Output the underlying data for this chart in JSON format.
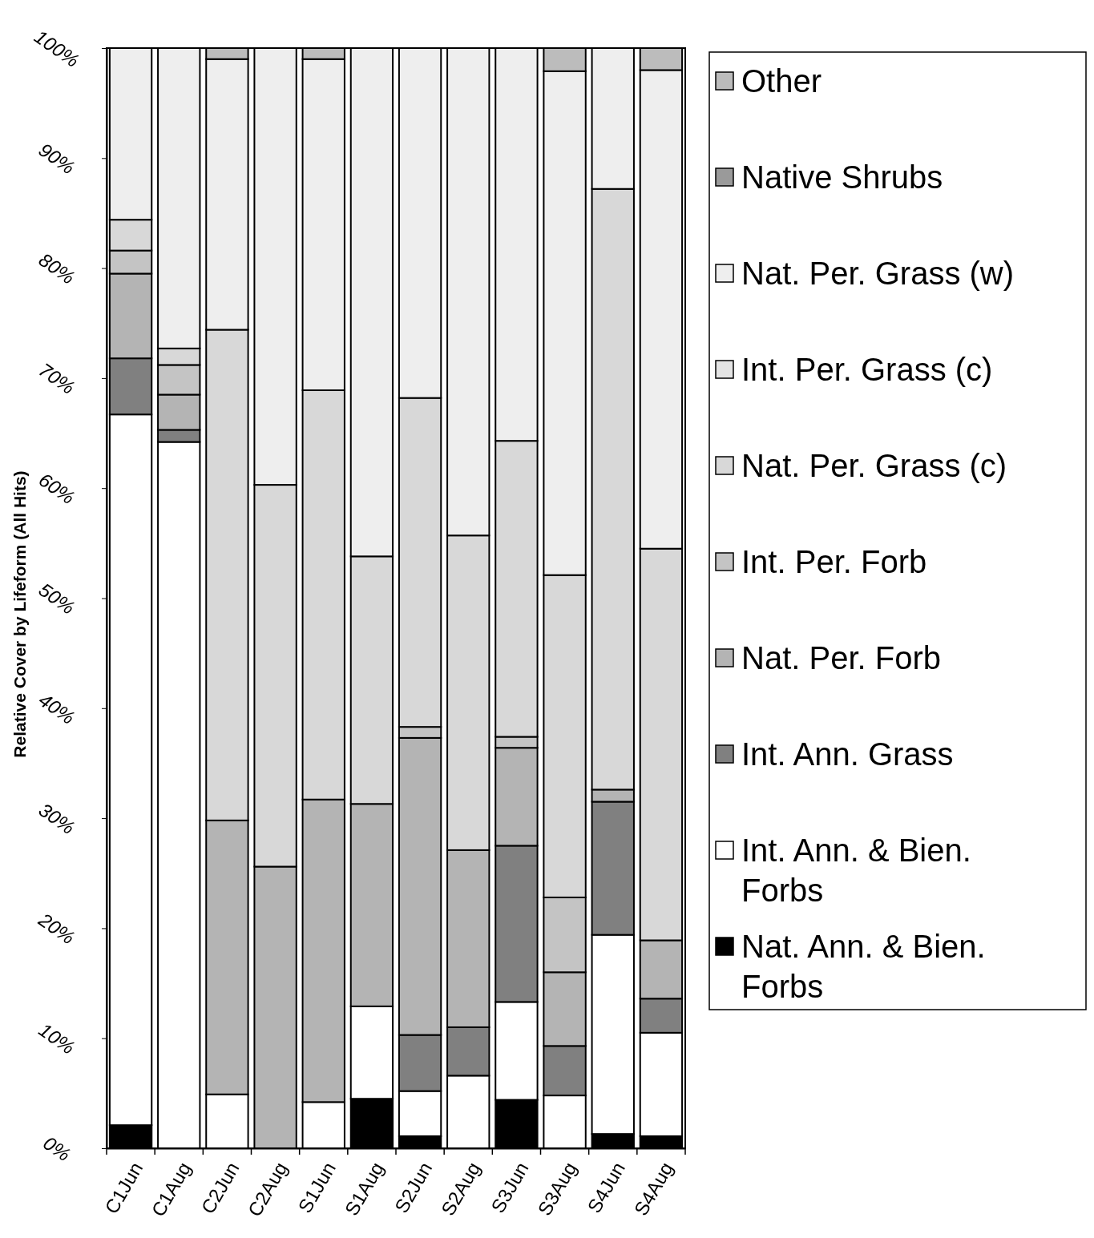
{
  "chart_data": {
    "type": "bar",
    "stacked": true,
    "ylabel": "Relative Cover by Lifeform (All Hits)",
    "categories": [
      "C1Jun",
      "C1Aug",
      "C2Jun",
      "C2Aug",
      "S1Jun",
      "S1Aug",
      "S2Jun",
      "S2Aug",
      "S3Jun",
      "S3Aug",
      "S4Jun",
      "S4Aug"
    ],
    "series": [
      {
        "name": "Nat. Ann. & Bien. Forbs",
        "color": "#000000",
        "values": [
          2.1,
          0,
          0,
          0,
          0,
          4.5,
          1.1,
          0,
          4.4,
          0,
          1.3,
          1.1
        ]
      },
      {
        "name": "Int. Ann. & Bien. Forbs",
        "color": "#ffffff",
        "values": [
          64.6,
          64.2,
          4.9,
          0,
          4.2,
          8.4,
          4.1,
          6.6,
          8.9,
          4.8,
          18.1,
          9.4
        ]
      },
      {
        "name": "Int. Ann. Grass",
        "color": "#808080",
        "values": [
          5.1,
          1.1,
          0,
          0,
          0,
          0,
          5.1,
          4.4,
          14.2,
          4.5,
          12.1,
          3.1
        ]
      },
      {
        "name": "Nat. Per. Forb",
        "color": "#b4b4b4",
        "values": [
          7.7,
          3.2,
          24.9,
          25.6,
          27.5,
          18.4,
          27.0,
          16.1,
          8.9,
          6.7,
          1.1,
          5.3
        ]
      },
      {
        "name": "Int. Per. Forb",
        "color": "#c4c4c4",
        "values": [
          2.1,
          2.7,
          0,
          0,
          0,
          0,
          1.0,
          0,
          1.0,
          6.8,
          0,
          0
        ]
      },
      {
        "name": "Nat. Per. Grass (c)",
        "color": "#d8d8d8",
        "values": [
          2.8,
          1.5,
          44.6,
          34.7,
          37.2,
          22.5,
          29.9,
          28.6,
          26.9,
          29.3,
          54.6,
          35.6
        ]
      },
      {
        "name": "Int. Per. Grass (c)",
        "color": "#e4e4e4",
        "values": [
          0,
          0,
          0,
          0,
          0,
          0,
          0,
          0,
          0,
          0,
          0,
          0
        ]
      },
      {
        "name": "Nat. Per. Grass (w)",
        "color": "#eeeeee",
        "values": [
          15.6,
          27.3,
          24.6,
          39.7,
          30.1,
          46.2,
          31.8,
          44.3,
          35.7,
          45.8,
          12.8,
          43.5
        ]
      },
      {
        "name": "Native Shrubs",
        "color": "#9a9a9a",
        "values": [
          0,
          0,
          0,
          0,
          0,
          0,
          0,
          0,
          0,
          0,
          0,
          0
        ]
      },
      {
        "name": "Other",
        "color": "#bcbcbc",
        "values": [
          0,
          0,
          1.0,
          0,
          1.0,
          0,
          0,
          0,
          0,
          2.1,
          0,
          2.0
        ]
      }
    ],
    "ylim": [
      0,
      100
    ],
    "yticks": [
      {
        "value": 0,
        "label": "0%"
      },
      {
        "value": 10,
        "label": "10%"
      },
      {
        "value": 20,
        "label": "20%"
      },
      {
        "value": 30,
        "label": "30%"
      },
      {
        "value": 40,
        "label": "40%"
      },
      {
        "value": 50,
        "label": "50%"
      },
      {
        "value": 60,
        "label": "60%"
      },
      {
        "value": 70,
        "label": "70%"
      },
      {
        "value": 80,
        "label": "80%"
      },
      {
        "value": 90,
        "label": "90%"
      },
      {
        "value": 100,
        "label": "100%"
      }
    ],
    "legend": "right"
  }
}
